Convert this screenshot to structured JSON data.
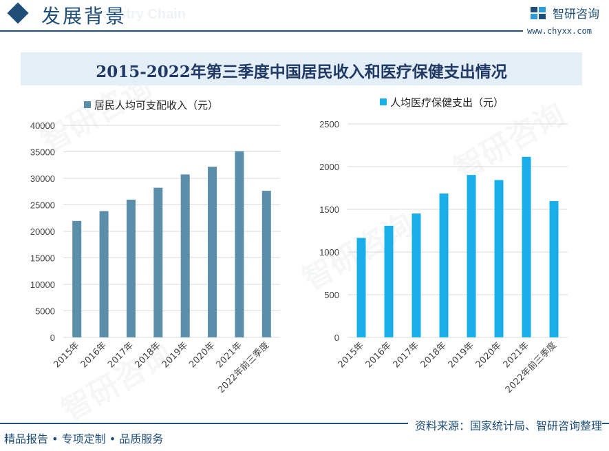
{
  "header": {
    "section_title": "发展背景",
    "brand_name": "智研咨询",
    "brand_url": "www.chyxx.com",
    "watermark_latin": "Industry Chain"
  },
  "title": "2015-2022年第三季度中国居民收入和医疗保健支出情况",
  "footer": {
    "left": "精品报告 • 专项定制 • 品质服务",
    "right": "资料来源：国家统计局、智研咨询整理"
  },
  "colors": {
    "primary": "#1f4e79",
    "series_income": "#5b8ea8",
    "series_health": "#1aaee8"
  },
  "chart_data": [
    {
      "type": "bar",
      "categories": [
        "2015年",
        "2016年",
        "2017年",
        "2018年",
        "2019年",
        "2020年",
        "2021年",
        "2022年前三季度"
      ],
      "series": [
        {
          "name": "居民人均可支配收入（元）",
          "values": [
            21966,
            23821,
            25974,
            28228,
            30733,
            32189,
            35128,
            27650
          ]
        }
      ],
      "ylim": [
        0,
        40000
      ],
      "yticks": [
        0,
        5000,
        10000,
        15000,
        20000,
        25000,
        30000,
        35000,
        40000
      ],
      "grid": true,
      "legend": "top-left",
      "color": "#5b8ea8"
    },
    {
      "type": "bar",
      "categories": [
        "2015年",
        "2016年",
        "2017年",
        "2018年",
        "2019年",
        "2020年",
        "2021年",
        "2022年前三季度"
      ],
      "series": [
        {
          "name": "人均医疗保健支出（元）",
          "values": [
            1165,
            1307,
            1451,
            1685,
            1902,
            1843,
            2115,
            1597
          ]
        }
      ],
      "ylim": [
        0,
        2500
      ],
      "yticks": [
        0,
        500,
        1000,
        1500,
        2000,
        2500
      ],
      "grid": true,
      "legend": "top-left",
      "color": "#1aaee8"
    }
  ]
}
